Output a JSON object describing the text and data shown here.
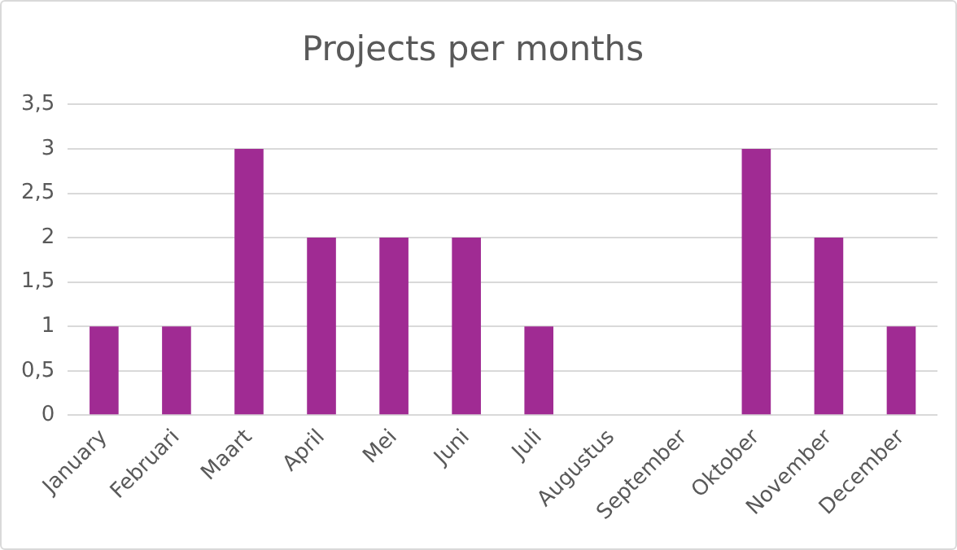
{
  "chart_data": {
    "type": "bar",
    "title": "Projects per months",
    "categories": [
      "January",
      "Februari",
      "Maart",
      "April",
      "Mei",
      "Juni",
      "Juli",
      "Augustus",
      "September",
      "Oktober",
      "November",
      "December"
    ],
    "values": [
      1,
      1,
      3,
      2,
      2,
      2,
      1,
      0,
      0,
      3,
      2,
      1
    ],
    "color": "#a02b93",
    "ylim": [
      0,
      3.5
    ],
    "yticks": [
      0,
      {
        "value": 0.5,
        "label": "0,5"
      },
      1,
      {
        "value": 1.5,
        "label": "1,5"
      },
      2,
      {
        "value": 2.5,
        "label": "2,5"
      },
      3,
      {
        "value": 3.5,
        "label": "3,5"
      }
    ],
    "grid": "y",
    "legend": false
  }
}
